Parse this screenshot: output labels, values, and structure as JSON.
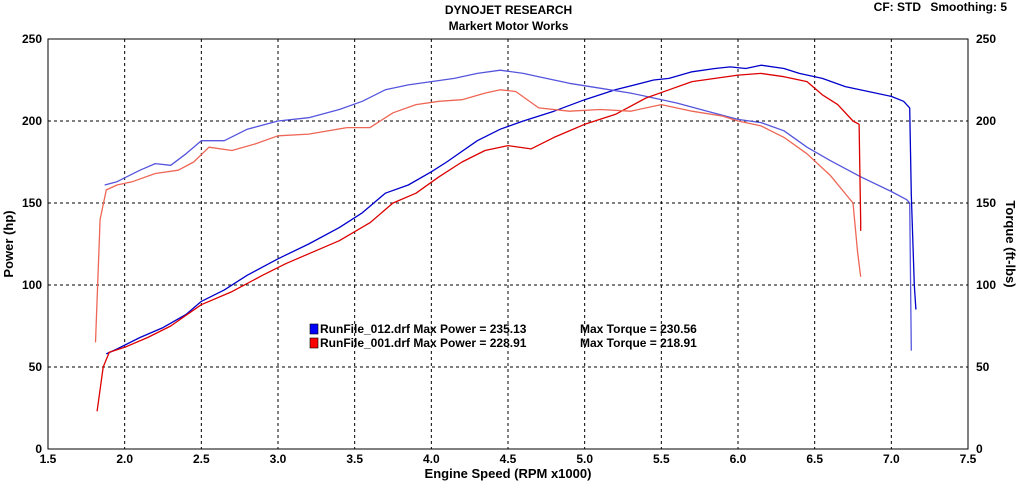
{
  "header": {
    "title": "DYNOJET RESEARCH",
    "subtitle": "Markert Motor Works",
    "cf_label": "CF: STD",
    "smoothing_label": "Smoothing: 5"
  },
  "chart_data": {
    "type": "line",
    "title": "DYNOJET RESEARCH",
    "subtitle": "Markert Motor Works",
    "xlabel": "Engine Speed (RPM x1000)",
    "ylabel_left": "Power (hp)",
    "ylabel_right": "Torque (ft-lbs)",
    "xlim": [
      1.5,
      7.5
    ],
    "ylim": [
      0,
      250
    ],
    "x_ticks": [
      "1.5",
      "2.0",
      "2.5",
      "3.0",
      "3.5",
      "4.0",
      "4.5",
      "5.0",
      "5.5",
      "6.0",
      "6.5",
      "7.0",
      "7.5"
    ],
    "y_ticks": [
      "0",
      "50",
      "100",
      "150",
      "200",
      "250"
    ],
    "grid": true,
    "legend_position": "center",
    "legend": [
      {
        "label": "RunFile_012.drf Max Power = 235.13",
        "torque_label": "Max Torque = 230.56",
        "color": "#0000ff"
      },
      {
        "label": "RunFile_001.drf Max Power = 228.91",
        "torque_label": "Max Torque = 218.91",
        "color": "#ff0000"
      }
    ],
    "series": [
      {
        "name": "RunFile_012.drf Power",
        "color": "#0000cc",
        "x": [
          1.88,
          1.95,
          2.1,
          2.25,
          2.4,
          2.5,
          2.65,
          2.8,
          3.0,
          3.2,
          3.4,
          3.55,
          3.7,
          3.85,
          4.0,
          4.1,
          4.3,
          4.45,
          4.6,
          4.8,
          5.0,
          5.2,
          5.45,
          5.55,
          5.7,
          5.85,
          5.95,
          6.05,
          6.15,
          6.3,
          6.4,
          6.55,
          6.7,
          6.85,
          7.0,
          7.08,
          7.12,
          7.13,
          7.15,
          7.16
        ],
        "y": [
          58,
          61,
          68,
          74,
          82,
          90,
          97,
          106,
          116,
          125,
          135,
          144,
          156,
          161,
          169,
          175,
          188,
          195,
          200,
          206,
          213,
          219,
          225,
          226,
          230,
          232,
          233,
          232,
          234,
          232,
          229,
          226,
          221,
          218,
          215,
          212,
          208,
          155,
          100,
          85
        ]
      },
      {
        "name": "RunFile_012.drf Torque",
        "color": "#5555dd",
        "x": [
          1.87,
          1.95,
          2.1,
          2.2,
          2.3,
          2.4,
          2.5,
          2.65,
          2.8,
          3.0,
          3.2,
          3.4,
          3.55,
          3.7,
          3.85,
          4.0,
          4.15,
          4.3,
          4.45,
          4.6,
          4.7,
          4.9,
          5.1,
          5.3,
          5.45,
          5.6,
          5.8,
          6.0,
          6.15,
          6.3,
          6.45,
          6.6,
          6.8,
          7.0,
          7.1,
          7.12,
          7.13
        ],
        "y": [
          161,
          163,
          170,
          174,
          173,
          180,
          188,
          188,
          195,
          200,
          202,
          207,
          212,
          219,
          222,
          224,
          226,
          229,
          231,
          229,
          227,
          223,
          220,
          217,
          214,
          211,
          206,
          201,
          199,
          194,
          184,
          176,
          166,
          157,
          152,
          150,
          60
        ]
      },
      {
        "name": "RunFile_001.drf Power",
        "color": "#dd0000",
        "x": [
          1.82,
          1.86,
          1.9,
          2.0,
          2.15,
          2.3,
          2.5,
          2.7,
          2.9,
          3.05,
          3.2,
          3.4,
          3.6,
          3.75,
          3.9,
          4.05,
          4.2,
          4.35,
          4.5,
          4.65,
          4.8,
          5.0,
          5.2,
          5.4,
          5.55,
          5.7,
          5.85,
          6.0,
          6.15,
          6.3,
          6.45,
          6.55,
          6.65,
          6.75,
          6.79,
          6.8,
          6.8
        ],
        "y": [
          23,
          50,
          59,
          62,
          68,
          75,
          88,
          96,
          106,
          113,
          119,
          127,
          138,
          150,
          156,
          166,
          175,
          182,
          185,
          183,
          190,
          198,
          204,
          214,
          219,
          224,
          226,
          228,
          229,
          227,
          224,
          216,
          210,
          200,
          198,
          138,
          133
        ]
      },
      {
        "name": "RunFile_001.drf Torque",
        "color": "#ee6655",
        "x": [
          1.81,
          1.84,
          1.88,
          1.95,
          2.05,
          2.2,
          2.35,
          2.45,
          2.55,
          2.7,
          2.85,
          3.0,
          3.2,
          3.45,
          3.6,
          3.75,
          3.9,
          4.05,
          4.2,
          4.35,
          4.45,
          4.55,
          4.7,
          4.9,
          5.1,
          5.3,
          5.5,
          5.7,
          5.9,
          6.0,
          6.15,
          6.3,
          6.45,
          6.6,
          6.75,
          6.78,
          6.8
        ],
        "y": [
          65,
          140,
          158,
          161,
          163,
          168,
          170,
          175,
          184,
          182,
          186,
          191,
          192,
          196,
          196,
          205,
          210,
          212,
          213,
          217,
          219,
          218,
          208,
          206,
          207,
          206,
          210,
          206,
          203,
          200,
          197,
          190,
          180,
          167,
          150,
          120,
          105
        ]
      }
    ]
  }
}
